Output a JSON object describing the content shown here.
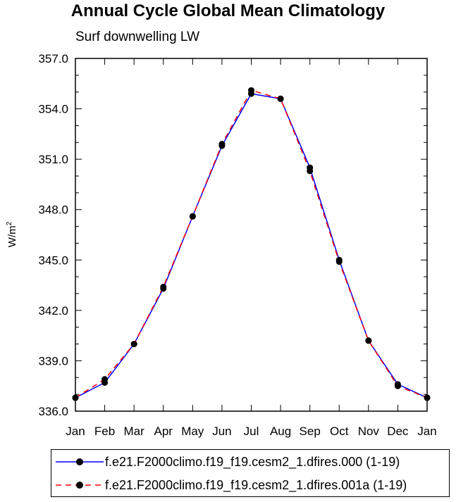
{
  "chart_data": {
    "type": "line",
    "title": "Annual Cycle Global Mean Climatology",
    "subtitle": "Surf downwelling LW",
    "ylabel_base": "W/m",
    "ylabel_sup": "2",
    "xlabel": "",
    "categories": [
      "Jan",
      "Feb",
      "Mar",
      "Apr",
      "May",
      "Jun",
      "Jul",
      "Aug",
      "Sep",
      "Oct",
      "Nov",
      "Dec",
      "Jan"
    ],
    "ylim": [
      336.0,
      357.0
    ],
    "yticks": [
      "336.0",
      "339.0",
      "342.0",
      "345.0",
      "348.0",
      "351.0",
      "354.0",
      "357.0"
    ],
    "series": [
      {
        "name": "f.e21.F2000climo.f19_f19.cesm2_1.dfires.000 (1-19)",
        "color": "#0000ff",
        "dash": "solid",
        "values": [
          336.8,
          337.7,
          340.0,
          343.3,
          347.6,
          351.8,
          354.9,
          354.6,
          350.5,
          345.0,
          340.2,
          337.6,
          336.8
        ]
      },
      {
        "name": "f.e21.F2000climo.f19_f19.cesm2_1.dfires.001a (1-19)",
        "color": "#ff0000",
        "dash": "dashed",
        "values": [
          336.8,
          337.9,
          340.0,
          343.4,
          347.6,
          351.9,
          355.1,
          354.6,
          350.3,
          344.9,
          340.2,
          337.5,
          336.8
        ]
      }
    ],
    "legend_position": "bottom"
  }
}
